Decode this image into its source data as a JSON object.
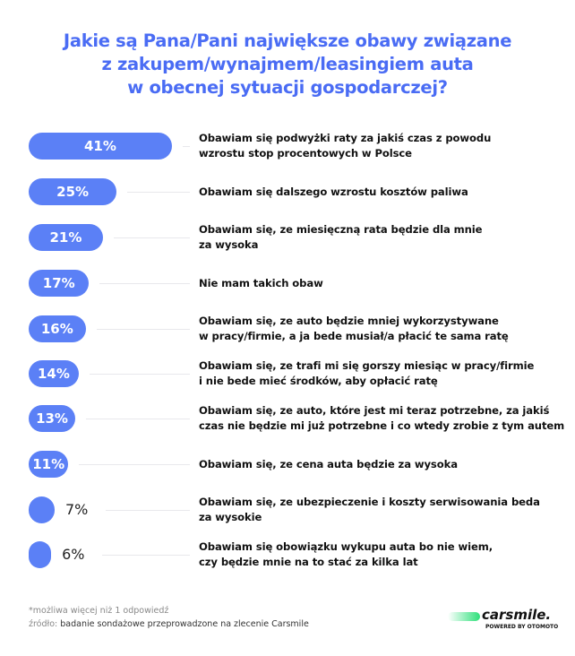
{
  "chart_data": {
    "type": "bar",
    "orientation": "horizontal",
    "title": [
      "Jakie są Pana/Pani największe obawy związane",
      "z zakupem/wynajmem/leasingiem auta",
      "w obecnej sytuacji gospodarczej?"
    ],
    "unit": "%",
    "categories": [
      [
        "Obawiam się podwyżki raty za jakiś czas z powodu",
        "wzrostu stop procentowych w Polsce"
      ],
      [
        "Obawiam się dalszego wzrostu kosztów paliwa"
      ],
      [
        "Obawiam się, ze miesięczną rata będzie dla mnie",
        "za wysoka"
      ],
      [
        "Nie mam takich obaw"
      ],
      [
        "Obawiam się, ze auto będzie mniej wykorzystywane",
        "w pracy/firmie, a ja bede musiał/a płacić te sama ratę"
      ],
      [
        "Obawiam się, ze trafi mi się gorszy miesiąc w pracy/firmie",
        "i nie bede mieć środków, aby opłacić ratę"
      ],
      [
        "Obawiam się, ze auto, które jest mi teraz potrzebne, za jakiś",
        "czas nie będzie mi już potrzebne i co wtedy zrobie z tym autem"
      ],
      [
        "Obawiam się, ze cena auta będzie za wysoka"
      ],
      [
        "Obawiam się, ze ubezpieczenie i koszty serwisowania beda",
        "za wysokie"
      ],
      [
        "Obawiam się obowiązku wykupu auta bo nie wiem,",
        "czy będzie mnie na to stać za kilka lat"
      ]
    ],
    "values": [
      41,
      25,
      21,
      17,
      16,
      14,
      13,
      11,
      7,
      6
    ],
    "value_labels": [
      "41%",
      "25%",
      "21%",
      "17%",
      "16%",
      "14%",
      "13%",
      "11%",
      "7%",
      "6%"
    ],
    "bar_color": "#5b80f6",
    "title_color": "#4a6cf4",
    "grid": false
  },
  "footer": {
    "note": "*możliwa więcej niż 1 odpowiedź",
    "source_label": "źródło:",
    "source_text": "badanie sondażowe przeprowadzone na zlecenie Carsmile"
  },
  "logo": {
    "name": "carsmile.",
    "sub": "POWERED BY OTOMOTO"
  }
}
